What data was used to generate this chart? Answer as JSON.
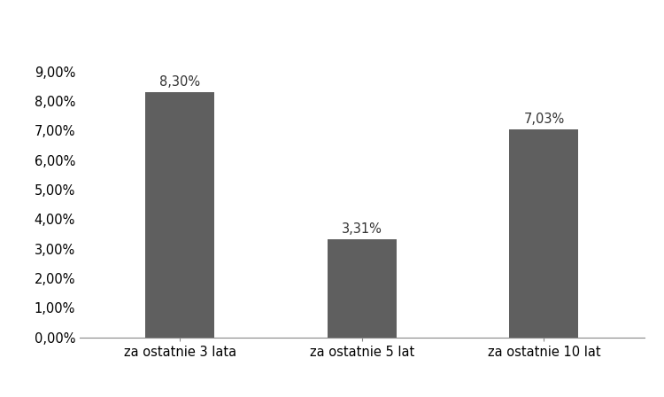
{
  "categories": [
    "za ostatnie 3 lata",
    "za ostatnie 5 lat",
    "za ostatnie 10 lat"
  ],
  "values": [
    0.083,
    0.0331,
    0.0703
  ],
  "labels": [
    "8,30%",
    "3,31%",
    "7,03%"
  ],
  "bar_color": "#5f5f5f",
  "ylim": [
    0,
    0.09
  ],
  "yticks": [
    0.0,
    0.01,
    0.02,
    0.03,
    0.04,
    0.05,
    0.06,
    0.07,
    0.08,
    0.09
  ],
  "ytick_labels": [
    "0,00%",
    "1,00%",
    "2,00%",
    "3,00%",
    "4,00%",
    "5,00%",
    "6,00%",
    "7,00%",
    "8,00%",
    "9,00%"
  ],
  "background_color": "#ffffff",
  "bar_width": 0.38,
  "label_fontsize": 10.5,
  "tick_fontsize": 10.5,
  "spine_color": "#888888"
}
